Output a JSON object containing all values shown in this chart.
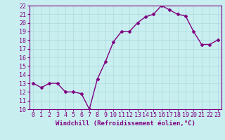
{
  "x": [
    0,
    1,
    2,
    3,
    4,
    5,
    6,
    7,
    8,
    9,
    10,
    11,
    12,
    13,
    14,
    15,
    16,
    17,
    18,
    19,
    20,
    21,
    22,
    23
  ],
  "y": [
    13.0,
    12.5,
    13.0,
    13.0,
    12.0,
    12.0,
    11.8,
    10.0,
    13.5,
    15.5,
    17.8,
    19.0,
    19.0,
    20.0,
    20.7,
    21.0,
    22.0,
    21.5,
    21.0,
    20.8,
    19.0,
    17.5,
    17.5,
    18.0
  ],
  "ylim": [
    10,
    22
  ],
  "yticks": [
    10,
    11,
    12,
    13,
    14,
    15,
    16,
    17,
    18,
    19,
    20,
    21,
    22
  ],
  "xticks": [
    0,
    1,
    2,
    3,
    4,
    5,
    6,
    7,
    8,
    9,
    10,
    11,
    12,
    13,
    14,
    15,
    16,
    17,
    18,
    19,
    20,
    21,
    22,
    23
  ],
  "xlabel": "Windchill (Refroidissement éolien,°C)",
  "line_color": "#800080",
  "bg_color": "#c8eef0",
  "grid_color": "#b0dde0",
  "marker": "D",
  "marker_size": 2.0,
  "line_width": 1.0,
  "tick_fontsize": 6.0,
  "xlabel_fontsize": 6.5
}
